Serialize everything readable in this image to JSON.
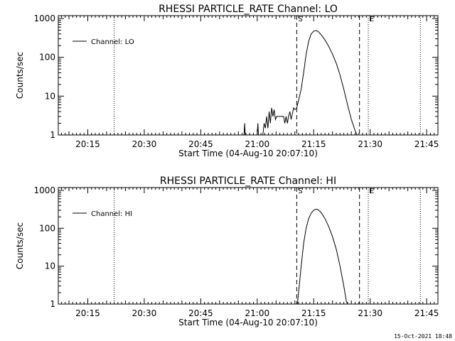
{
  "footer": {
    "timestamp": "15-Oct-2021 18:48"
  },
  "chart_data": [
    {
      "type": "line",
      "title": "RHESSI PARTICLE_RATE Channel: LO",
      "xlabel": "Start Time (04-Aug-10 20:07:10)",
      "ylabel": "Counts/sec",
      "yscale": "log",
      "ylim": [
        1,
        1000
      ],
      "yticks": [
        "1",
        "10",
        "100",
        "1000"
      ],
      "xlim": [
        "20:07:10",
        "21:48:00"
      ],
      "xticks": [
        "20:15",
        "20:30",
        "20:45",
        "21:00",
        "21:15",
        "21:30",
        "21:45"
      ],
      "legend": {
        "label": "Channel: LO",
        "placement": "top-left"
      },
      "markers": [
        {
          "time": "20:22:00",
          "style": "dotted"
        },
        {
          "time": "21:10:30",
          "style": "dashed",
          "label": "S"
        },
        {
          "time": "21:27:10",
          "style": "dashed"
        },
        {
          "time": "21:29:30",
          "style": "dotted",
          "label": "E"
        },
        {
          "time": "21:43:20",
          "style": "dotted"
        }
      ],
      "series": [
        {
          "name": "Channel: LO",
          "segments": [
            [
              [
                "20:56:30",
                1
              ],
              [
                "20:56:40",
                2
              ],
              [
                "20:56:50",
                1
              ]
            ],
            [
              [
                "21:00:00",
                1
              ],
              [
                "21:00:10",
                2
              ],
              [
                "21:00:20",
                1
              ]
            ],
            [
              [
                "21:01:30",
                1
              ],
              [
                "21:01:50",
                2
              ],
              [
                "21:02:10",
                1.5
              ],
              [
                "21:02:30",
                3
              ],
              [
                "21:02:50",
                1.5
              ],
              [
                "21:03:10",
                4
              ],
              [
                "21:03:30",
                2
              ],
              [
                "21:03:50",
                5
              ],
              [
                "21:04:10",
                3
              ],
              [
                "21:04:30",
                4.5
              ],
              [
                "21:04:50",
                2.5
              ],
              [
                "21:05:10",
                3
              ],
              [
                "21:06:00",
                3
              ],
              [
                "21:06:30",
                3
              ],
              [
                "21:07:00",
                3
              ],
              [
                "21:07:20",
                2
              ],
              [
                "21:07:40",
                3
              ],
              [
                "21:08:00",
                2
              ],
              [
                "21:08:20",
                3
              ],
              [
                "21:08:40",
                4
              ],
              [
                "21:09:00",
                2.5
              ],
              [
                "21:09:20",
                3.5
              ],
              [
                "21:09:40",
                5
              ],
              [
                "21:10:00",
                4.5
              ],
              [
                "21:10:30",
                5
              ],
              [
                "21:11:00",
                8
              ],
              [
                "21:11:40",
                15
              ],
              [
                "21:12:20",
                40
              ],
              [
                "21:13:00",
                120
              ],
              [
                "21:13:40",
                260
              ],
              [
                "21:14:20",
                400
              ],
              [
                "21:15:00",
                470
              ],
              [
                "21:15:40",
                490
              ],
              [
                "21:16:20",
                450
              ],
              [
                "21:17:00",
                380
              ],
              [
                "21:18:00",
                280
              ],
              [
                "21:19:00",
                190
              ],
              [
                "21:20:00",
                120
              ],
              [
                "21:21:00",
                70
              ],
              [
                "21:22:00",
                35
              ],
              [
                "21:23:00",
                15
              ],
              [
                "21:24:00",
                6
              ],
              [
                "21:25:00",
                2.5
              ],
              [
                "21:26:00",
                1.3
              ],
              [
                "21:26:30",
                1
              ]
            ]
          ]
        }
      ]
    },
    {
      "type": "line",
      "title": "RHESSI PARTICLE_RATE Channel: HI",
      "xlabel": "Start Time (04-Aug-10 20:07:10)",
      "ylabel": "Counts/sec",
      "yscale": "log",
      "ylim": [
        1,
        1000
      ],
      "yticks": [
        "1",
        "10",
        "100",
        "1000"
      ],
      "xlim": [
        "20:07:10",
        "21:48:00"
      ],
      "xticks": [
        "20:15",
        "20:30",
        "20:45",
        "21:00",
        "21:15",
        "21:30",
        "21:45"
      ],
      "legend": {
        "label": "Channel: HI",
        "placement": "top-left"
      },
      "markers": [
        {
          "time": "20:22:00",
          "style": "dotted"
        },
        {
          "time": "21:10:30",
          "style": "dashed",
          "label": "S"
        },
        {
          "time": "21:27:10",
          "style": "dashed"
        },
        {
          "time": "21:29:30",
          "style": "dotted",
          "label": "E"
        },
        {
          "time": "21:43:20",
          "style": "dotted"
        }
      ],
      "series": [
        {
          "name": "Channel: HI",
          "segments": [
            [
              [
                "21:10:40",
                1
              ],
              [
                "21:11:10",
                3
              ],
              [
                "21:11:40",
                10
              ],
              [
                "21:12:20",
                40
              ],
              [
                "21:13:00",
                100
              ],
              [
                "21:13:40",
                180
              ],
              [
                "21:14:20",
                250
              ],
              [
                "21:15:00",
                300
              ],
              [
                "21:15:40",
                320
              ],
              [
                "21:16:20",
                300
              ],
              [
                "21:17:00",
                260
              ],
              [
                "21:18:00",
                180
              ],
              [
                "21:19:00",
                110
              ],
              [
                "21:20:00",
                60
              ],
              [
                "21:21:00",
                28
              ],
              [
                "21:22:00",
                10
              ],
              [
                "21:23:00",
                3
              ],
              [
                "21:23:40",
                1.2
              ],
              [
                "21:24:00",
                1
              ]
            ]
          ]
        }
      ]
    }
  ]
}
